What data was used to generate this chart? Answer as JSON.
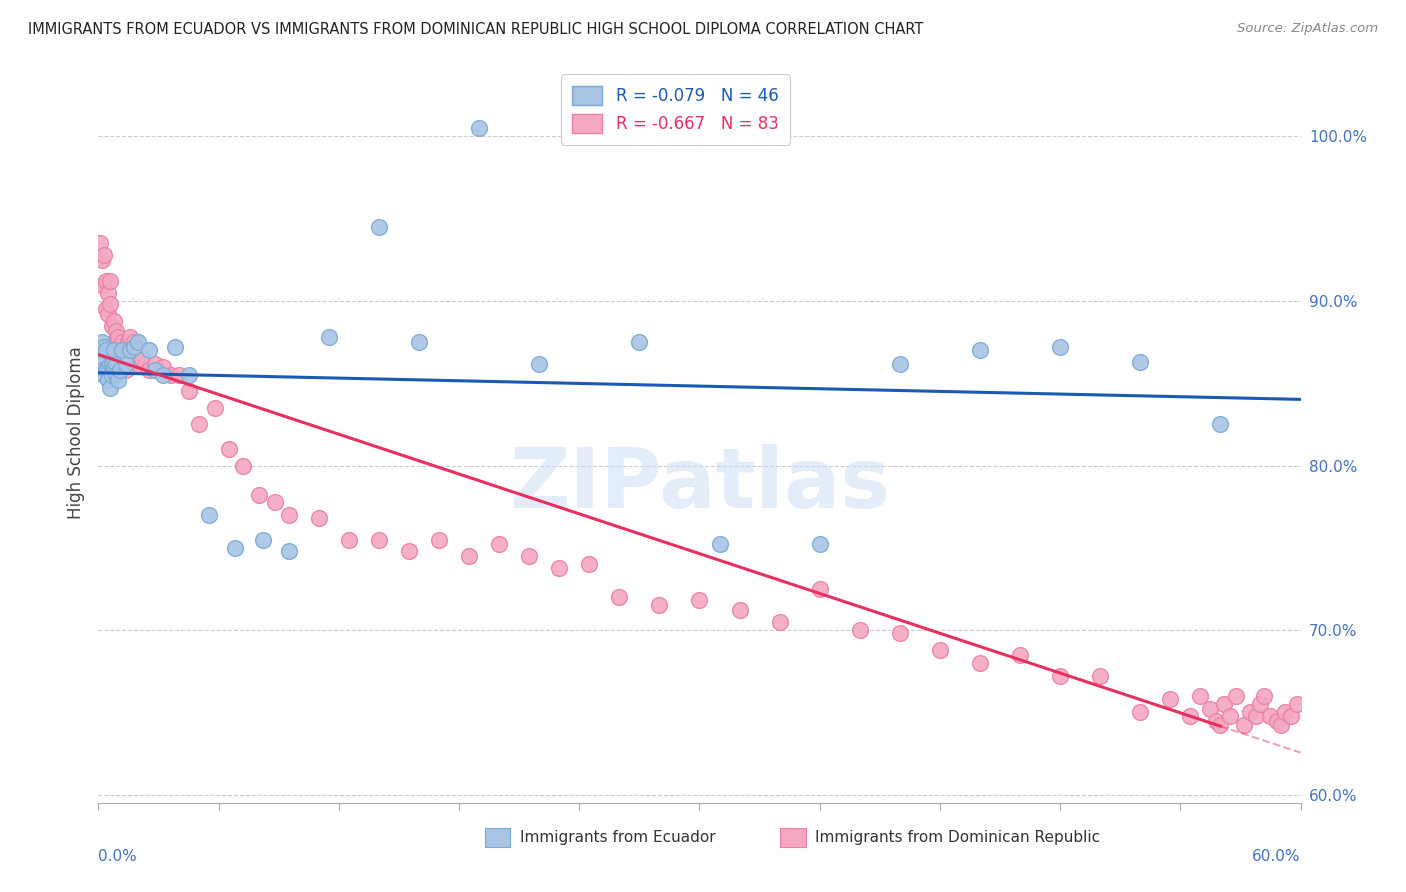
{
  "title": "IMMIGRANTS FROM ECUADOR VS IMMIGRANTS FROM DOMINICAN REPUBLIC HIGH SCHOOL DIPLOMA CORRELATION CHART",
  "source": "Source: ZipAtlas.com",
  "ylabel": "High School Diploma",
  "ytick_values": [
    0.6,
    0.7,
    0.8,
    0.9,
    1.0
  ],
  "ytick_labels": [
    "60.0%",
    "70.0%",
    "80.0%",
    "90.0%",
    "100.0%"
  ],
  "xlim": [
    0.0,
    0.6
  ],
  "ylim": [
    0.595,
    1.045
  ],
  "ecuador_R": -0.079,
  "ecuador_N": 46,
  "dr_R": -0.667,
  "dr_N": 83,
  "ecuador_dot_color": "#a8c4e5",
  "ecuador_edge_color": "#7aaad4",
  "dr_dot_color": "#f4a8c0",
  "dr_edge_color": "#e880a8",
  "ecuador_line_color": "#1a5ab5",
  "dr_line_color": "#e83060",
  "watermark_text": "ZIPatlas",
  "watermark_color": "#c8daf5",
  "legend_ecuador_text": "R = -0.079   N = 46",
  "legend_dr_text": "R = -0.667   N = 83",
  "legend_ecuador_color": "#1a5ab5",
  "legend_dr_color": "#e83060",
  "bottom_label_ecuador": "Immigrants from Ecuador",
  "bottom_label_dr": "Immigrants from Dominican Republic",
  "ecuador_x": [
    0.001,
    0.002,
    0.002,
    0.003,
    0.003,
    0.004,
    0.004,
    0.005,
    0.005,
    0.006,
    0.006,
    0.007,
    0.007,
    0.008,
    0.008,
    0.009,
    0.009,
    0.01,
    0.011,
    0.012,
    0.014,
    0.016,
    0.018,
    0.02,
    0.025,
    0.028,
    0.032,
    0.038,
    0.045,
    0.055,
    0.068,
    0.082,
    0.095,
    0.115,
    0.14,
    0.16,
    0.19,
    0.22,
    0.27,
    0.31,
    0.36,
    0.4,
    0.44,
    0.48,
    0.52,
    0.56
  ],
  "ecuador_y": [
    0.862,
    0.875,
    0.858,
    0.872,
    0.855,
    0.87,
    0.858,
    0.86,
    0.852,
    0.862,
    0.847,
    0.862,
    0.855,
    0.86,
    0.87,
    0.862,
    0.855,
    0.852,
    0.858,
    0.87,
    0.862,
    0.87,
    0.872,
    0.875,
    0.87,
    0.858,
    0.855,
    0.872,
    0.855,
    0.77,
    0.75,
    0.755,
    0.748,
    0.878,
    0.945,
    0.875,
    1.005,
    0.862,
    0.875,
    0.752,
    0.752,
    0.862,
    0.87,
    0.872,
    0.863,
    0.825
  ],
  "dr_x": [
    0.001,
    0.002,
    0.002,
    0.003,
    0.004,
    0.004,
    0.005,
    0.005,
    0.006,
    0.006,
    0.007,
    0.008,
    0.008,
    0.009,
    0.009,
    0.01,
    0.01,
    0.011,
    0.012,
    0.013,
    0.014,
    0.015,
    0.016,
    0.018,
    0.02,
    0.022,
    0.025,
    0.028,
    0.032,
    0.036,
    0.04,
    0.045,
    0.05,
    0.058,
    0.065,
    0.072,
    0.08,
    0.088,
    0.095,
    0.11,
    0.125,
    0.14,
    0.155,
    0.17,
    0.185,
    0.2,
    0.215,
    0.23,
    0.245,
    0.26,
    0.28,
    0.3,
    0.32,
    0.34,
    0.36,
    0.38,
    0.4,
    0.42,
    0.44,
    0.46,
    0.48,
    0.5,
    0.52,
    0.535,
    0.545,
    0.55,
    0.555,
    0.558,
    0.56,
    0.562,
    0.565,
    0.568,
    0.572,
    0.575,
    0.578,
    0.58,
    0.582,
    0.585,
    0.588,
    0.59,
    0.592,
    0.595,
    0.598
  ],
  "dr_y": [
    0.935,
    0.925,
    0.91,
    0.928,
    0.895,
    0.912,
    0.905,
    0.892,
    0.912,
    0.898,
    0.885,
    0.888,
    0.875,
    0.875,
    0.882,
    0.87,
    0.878,
    0.872,
    0.875,
    0.87,
    0.858,
    0.875,
    0.878,
    0.875,
    0.862,
    0.865,
    0.858,
    0.862,
    0.86,
    0.855,
    0.855,
    0.845,
    0.825,
    0.835,
    0.81,
    0.8,
    0.782,
    0.778,
    0.77,
    0.768,
    0.755,
    0.755,
    0.748,
    0.755,
    0.745,
    0.752,
    0.745,
    0.738,
    0.74,
    0.72,
    0.715,
    0.718,
    0.712,
    0.705,
    0.725,
    0.7,
    0.698,
    0.688,
    0.68,
    0.685,
    0.672,
    0.672,
    0.65,
    0.658,
    0.648,
    0.66,
    0.652,
    0.645,
    0.642,
    0.655,
    0.648,
    0.66,
    0.642,
    0.65,
    0.648,
    0.655,
    0.66,
    0.648,
    0.645,
    0.642,
    0.65,
    0.648,
    0.655
  ]
}
